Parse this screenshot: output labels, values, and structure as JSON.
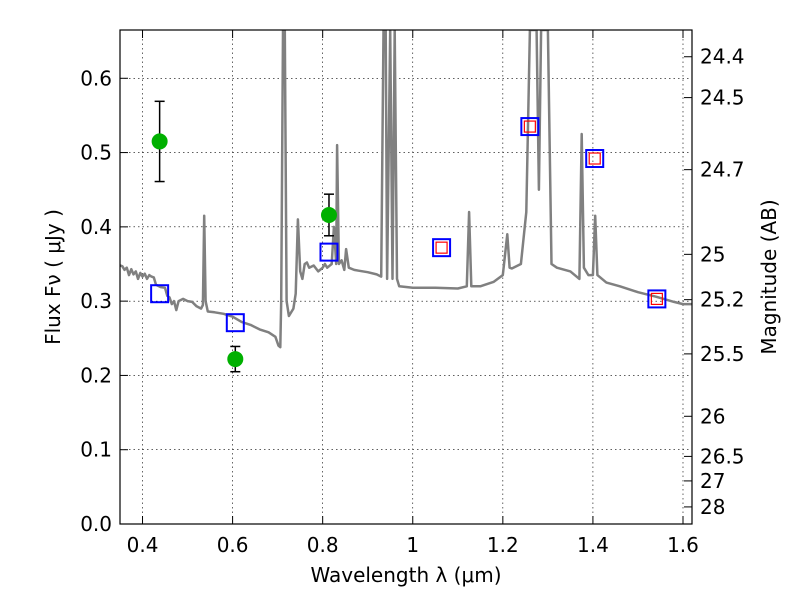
{
  "chart_data": {
    "type": "scatter",
    "xlabel": "Wavelength  λ (μm)",
    "ylabel": "Flux  Fν  ( μJy )",
    "y2label": "Magnitude (AB)",
    "xlim": [
      0.35,
      1.62
    ],
    "ylim": [
      0.0,
      0.665
    ],
    "grid": true,
    "x_ticks": [
      0.4,
      0.6,
      0.8,
      1.0,
      1.2,
      1.4,
      1.6
    ],
    "x_tick_labels": [
      "0.4",
      "0.6",
      "0.8",
      "1",
      "1.2",
      "1.4",
      "1.6"
    ],
    "y_ticks": [
      0.0,
      0.1,
      0.2,
      0.3,
      0.4,
      0.5,
      0.6
    ],
    "y_tick_labels": [
      "0.0",
      "0.1",
      "0.2",
      "0.3",
      "0.4",
      "0.5",
      "0.6"
    ],
    "y2_ticks": [
      {
        "label": "24.4",
        "flux": 0.629
      },
      {
        "label": "24.5",
        "flux": 0.574
      },
      {
        "label": "24.7",
        "flux": 0.477
      },
      {
        "label": "25",
        "flux": 0.363
      },
      {
        "label": "25.2",
        "flux": 0.302
      },
      {
        "label": "25.5",
        "flux": 0.229
      },
      {
        "label": "26",
        "flux": 0.145
      },
      {
        "label": "26.5",
        "flux": 0.091
      },
      {
        "label": "27",
        "flux": 0.058
      },
      {
        "label": "28",
        "flux": 0.023
      }
    ],
    "series": [
      {
        "kind": "line",
        "color": "#808080",
        "points": [
          [
            0.35,
            0.348
          ],
          [
            0.355,
            0.347
          ],
          [
            0.36,
            0.342
          ],
          [
            0.365,
            0.345
          ],
          [
            0.37,
            0.335
          ],
          [
            0.375,
            0.343
          ],
          [
            0.38,
            0.336
          ],
          [
            0.385,
            0.34
          ],
          [
            0.39,
            0.33
          ],
          [
            0.395,
            0.338
          ],
          [
            0.4,
            0.333
          ],
          [
            0.405,
            0.337
          ],
          [
            0.41,
            0.33
          ],
          [
            0.415,
            0.335
          ],
          [
            0.42,
            0.333
          ],
          [
            0.425,
            0.332
          ],
          [
            0.43,
            0.322
          ],
          [
            0.44,
            0.319
          ],
          [
            0.45,
            0.318
          ],
          [
            0.455,
            0.307
          ],
          [
            0.46,
            0.305
          ],
          [
            0.465,
            0.296
          ],
          [
            0.47,
            0.3
          ],
          [
            0.475,
            0.288
          ],
          [
            0.48,
            0.3
          ],
          [
            0.49,
            0.303
          ],
          [
            0.5,
            0.3
          ],
          [
            0.51,
            0.299
          ],
          [
            0.52,
            0.293
          ],
          [
            0.53,
            0.29
          ],
          [
            0.534,
            0.295
          ],
          [
            0.537,
            0.415
          ],
          [
            0.54,
            0.3
          ],
          [
            0.545,
            0.286
          ],
          [
            0.56,
            0.285
          ],
          [
            0.58,
            0.283
          ],
          [
            0.6,
            0.279
          ],
          [
            0.62,
            0.272
          ],
          [
            0.64,
            0.268
          ],
          [
            0.66,
            0.262
          ],
          [
            0.68,
            0.258
          ],
          [
            0.695,
            0.252
          ],
          [
            0.702,
            0.24
          ],
          [
            0.706,
            0.238
          ],
          [
            0.708,
            0.3
          ],
          [
            0.712,
            0.665
          ],
          [
            0.716,
            0.665
          ],
          [
            0.72,
            0.3
          ],
          [
            0.725,
            0.28
          ],
          [
            0.735,
            0.29
          ],
          [
            0.74,
            0.31
          ],
          [
            0.745,
            0.41
          ],
          [
            0.75,
            0.34
          ],
          [
            0.755,
            0.33
          ],
          [
            0.76,
            0.35
          ],
          [
            0.765,
            0.352
          ],
          [
            0.77,
            0.345
          ],
          [
            0.78,
            0.348
          ],
          [
            0.79,
            0.34
          ],
          [
            0.8,
            0.345
          ],
          [
            0.805,
            0.35
          ],
          [
            0.81,
            0.345
          ],
          [
            0.82,
            0.35
          ],
          [
            0.825,
            0.4
          ],
          [
            0.83,
            0.35
          ],
          [
            0.832,
            0.51
          ],
          [
            0.836,
            0.35
          ],
          [
            0.842,
            0.355
          ],
          [
            0.848,
            0.342
          ],
          [
            0.852,
            0.37
          ],
          [
            0.858,
            0.345
          ],
          [
            0.87,
            0.342
          ],
          [
            0.88,
            0.341
          ],
          [
            0.9,
            0.339
          ],
          [
            0.92,
            0.336
          ],
          [
            0.93,
            0.333
          ],
          [
            0.935,
            0.665
          ],
          [
            0.94,
            0.665
          ],
          [
            0.943,
            0.33
          ],
          [
            0.95,
            0.665
          ],
          [
            0.955,
            0.33
          ],
          [
            0.96,
            0.665
          ],
          [
            0.965,
            0.33
          ],
          [
            0.97,
            0.32
          ],
          [
            1.0,
            0.318
          ],
          [
            1.05,
            0.318
          ],
          [
            1.1,
            0.317
          ],
          [
            1.12,
            0.32
          ],
          [
            1.125,
            0.42
          ],
          [
            1.13,
            0.32
          ],
          [
            1.15,
            0.32
          ],
          [
            1.18,
            0.326
          ],
          [
            1.2,
            0.335
          ],
          [
            1.21,
            0.39
          ],
          [
            1.215,
            0.345
          ],
          [
            1.22,
            0.344
          ],
          [
            1.24,
            0.35
          ],
          [
            1.252,
            0.42
          ],
          [
            1.26,
            0.665
          ],
          [
            1.275,
            0.665
          ],
          [
            1.28,
            0.45
          ],
          [
            1.285,
            0.665
          ],
          [
            1.3,
            0.665
          ],
          [
            1.308,
            0.35
          ],
          [
            1.32,
            0.345
          ],
          [
            1.35,
            0.34
          ],
          [
            1.37,
            0.33
          ],
          [
            1.375,
            0.525
          ],
          [
            1.38,
            0.345
          ],
          [
            1.39,
            0.335
          ],
          [
            1.4,
            0.335
          ],
          [
            1.405,
            0.415
          ],
          [
            1.41,
            0.335
          ],
          [
            1.43,
            0.325
          ],
          [
            1.46,
            0.32
          ],
          [
            1.5,
            0.312
          ],
          [
            1.54,
            0.306
          ],
          [
            1.58,
            0.299
          ],
          [
            1.6,
            0.296
          ],
          [
            1.62,
            0.296
          ]
        ]
      },
      {
        "kind": "points",
        "marker": "circle",
        "color": "#00b000",
        "points": [
          {
            "x": 0.438,
            "y": 0.515,
            "err": 0.054
          },
          {
            "x": 0.606,
            "y": 0.222,
            "err": 0.017
          },
          {
            "x": 0.814,
            "y": 0.416,
            "err": 0.028
          }
        ]
      },
      {
        "kind": "points",
        "marker": "square",
        "color": "#0000ff",
        "points": [
          {
            "x": 0.438,
            "y": 0.31
          },
          {
            "x": 0.606,
            "y": 0.271
          },
          {
            "x": 0.814,
            "y": 0.366
          },
          {
            "x": 1.064,
            "y": 0.372
          },
          {
            "x": 1.26,
            "y": 0.535
          },
          {
            "x": 1.404,
            "y": 0.492
          },
          {
            "x": 1.542,
            "y": 0.303
          }
        ]
      },
      {
        "kind": "points",
        "marker": "square-small",
        "color": "#ff0000",
        "points": [
          {
            "x": 1.064,
            "y": 0.372
          },
          {
            "x": 1.26,
            "y": 0.535
          },
          {
            "x": 1.404,
            "y": 0.492
          },
          {
            "x": 1.542,
            "y": 0.303
          }
        ]
      }
    ]
  }
}
